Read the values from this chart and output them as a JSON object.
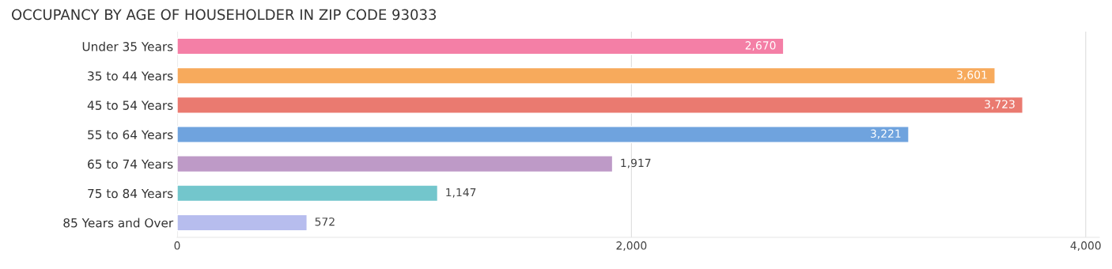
{
  "chart_data": {
    "type": "bar",
    "orientation": "horizontal",
    "title": "OCCUPANCY BY AGE OF HOUSEHOLDER IN ZIP CODE 93033",
    "categories": [
      "Under 35 Years",
      "35 to 44 Years",
      "45 to 54 Years",
      "55 to 64 Years",
      "65 to 74 Years",
      "75 to 84 Years",
      "85 Years and Over"
    ],
    "values": [
      2670,
      3601,
      3723,
      3221,
      1917,
      1147,
      572
    ],
    "colors": [
      "#f47fa6",
      "#f7aa5c",
      "#ea7a70",
      "#6fa3de",
      "#be9ac7",
      "#73c6cc",
      "#b7bdee"
    ],
    "xlim": [
      0,
      4060
    ],
    "xticks": [
      {
        "value": 0,
        "label": "0"
      },
      {
        "value": 2000,
        "label": "2,000"
      },
      {
        "value": 4000,
        "label": "4,000"
      }
    ],
    "grid": "x",
    "value_labels": [
      "2,670",
      "3,601",
      "3,723",
      "3,221",
      "1,917",
      "1,147",
      "572"
    ]
  }
}
